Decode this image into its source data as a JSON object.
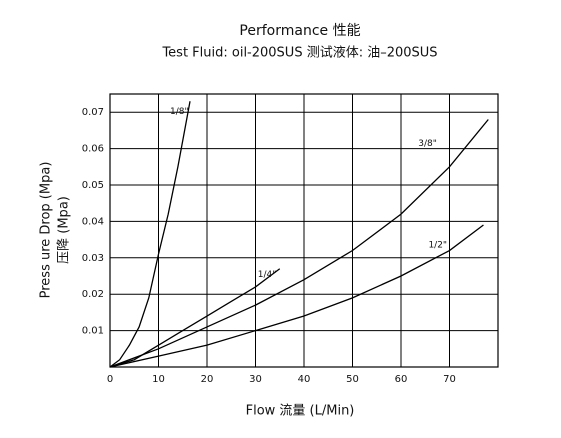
{
  "chart_data": {
    "type": "line",
    "title": "Performance 性能",
    "subtitle": "Test Fluid: oil-200SUS 测试液体:  油–200SUS",
    "x_label": "Flow 流量 (L/Min)",
    "y_label": [
      "Press ure Drop (Mpa)",
      "压降  (Mpa)"
    ],
    "xlim": [
      0,
      80
    ],
    "xticks": [
      0,
      10,
      20,
      30,
      40,
      50,
      60,
      70
    ],
    "ylim": [
      0,
      0.075
    ],
    "yticks": [
      0.01,
      0.02,
      0.03,
      0.04,
      0.05,
      0.06,
      0.07
    ],
    "grid": true,
    "color": "#000000",
    "series": [
      {
        "name": "1/8\"",
        "x": [
          0,
          2,
          4,
          6,
          8,
          10,
          12,
          14,
          16.5
        ],
        "values": [
          0,
          0.002,
          0.006,
          0.011,
          0.019,
          0.031,
          0.042,
          0.055,
          0.073
        ]
      },
      {
        "name": "1/4\"",
        "x": [
          0,
          5,
          10,
          15,
          20,
          25,
          30,
          35
        ],
        "values": [
          0,
          0.002,
          0.006,
          0.01,
          0.014,
          0.018,
          0.022,
          0.027
        ]
      },
      {
        "name": "3/8\"",
        "x": [
          0,
          10,
          20,
          30,
          40,
          50,
          60,
          70,
          78
        ],
        "values": [
          0,
          0.005,
          0.011,
          0.017,
          0.024,
          0.032,
          0.042,
          0.055,
          0.068
        ]
      },
      {
        "name": "1/2\"",
        "x": [
          0,
          10,
          20,
          30,
          40,
          50,
          60,
          70,
          77
        ],
        "values": [
          0,
          0.003,
          0.006,
          0.01,
          0.014,
          0.019,
          0.025,
          0.032,
          0.039
        ]
      }
    ]
  }
}
